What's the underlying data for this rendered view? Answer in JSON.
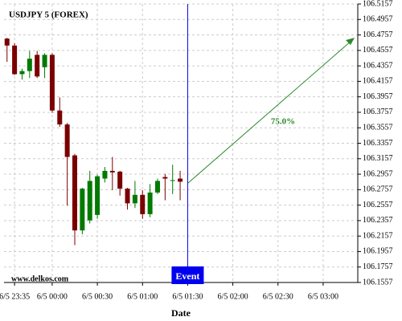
{
  "chart_data": {
    "type": "candlestick",
    "title": "USDJPY 5 (FOREX)",
    "x_label": "Date",
    "watermark": "www.delkos.com",
    "x": [
      -30,
      -25,
      -20,
      -15,
      -10,
      -5,
      0,
      5,
      10,
      15,
      20,
      25,
      30,
      35,
      40,
      45,
      50,
      55,
      60,
      65,
      70,
      75,
      80,
      85
    ],
    "open": [
      106.471,
      106.462,
      106.425,
      106.429,
      106.45,
      106.434,
      106.45,
      106.378,
      106.36,
      106.32,
      106.223,
      106.236,
      106.243,
      106.29,
      106.3,
      106.299,
      106.277,
      106.258,
      106.269,
      106.244,
      106.272,
      106.292,
      106.287,
      106.29
    ],
    "high": [
      106.472,
      106.465,
      106.432,
      106.455,
      106.455,
      106.452,
      106.452,
      106.395,
      106.362,
      106.322,
      106.278,
      106.3,
      106.295,
      106.305,
      106.318,
      106.3,
      106.278,
      106.287,
      106.275,
      106.283,
      106.29,
      106.296,
      106.308,
      106.3
    ],
    "low": [
      106.441,
      106.424,
      106.418,
      106.42,
      106.42,
      106.42,
      106.375,
      106.357,
      106.255,
      106.204,
      106.218,
      106.232,
      106.238,
      106.285,
      106.275,
      106.268,
      106.25,
      106.252,
      106.238,
      106.24,
      106.27,
      106.262,
      106.27,
      106.262
    ],
    "close": [
      106.462,
      106.425,
      106.429,
      106.445,
      106.422,
      106.45,
      106.378,
      106.36,
      106.318,
      106.223,
      106.277,
      106.287,
      106.293,
      106.3,
      106.298,
      106.277,
      106.258,
      106.269,
      106.244,
      106.272,
      106.287,
      106.29,
      106.288,
      106.286
    ],
    "up_color": "#007a00",
    "down_color": "#7a0000",
    "xlim": [
      -32,
      203
    ],
    "xticks": [
      {
        "value": -25,
        "label": "6/5 23:35"
      },
      {
        "value": 0,
        "label": "6/5 00:00"
      },
      {
        "value": 30,
        "label": "6/5 00:30"
      },
      {
        "value": 60,
        "label": "6/5 01:00"
      },
      {
        "value": 90,
        "label": "6/5 01:30"
      },
      {
        "value": 120,
        "label": "6/5 02:00"
      },
      {
        "value": 150,
        "label": "6/5 02:30"
      },
      {
        "value": 180,
        "label": "6/5 03:00"
      }
    ],
    "ylim": [
      106.1557,
      106.5157
    ],
    "yticks": [
      106.1557,
      106.1757,
      106.1957,
      106.2157,
      106.2357,
      106.2557,
      106.2757,
      106.2957,
      106.3157,
      106.3357,
      106.3557,
      106.3757,
      106.3957,
      106.4157,
      106.4357,
      106.4557,
      106.4757,
      106.4957,
      106.5157
    ],
    "grid": true,
    "event": {
      "label": "Event",
      "x": 90,
      "color": "#0000ee"
    },
    "forecast_label": "75.0%"
  }
}
